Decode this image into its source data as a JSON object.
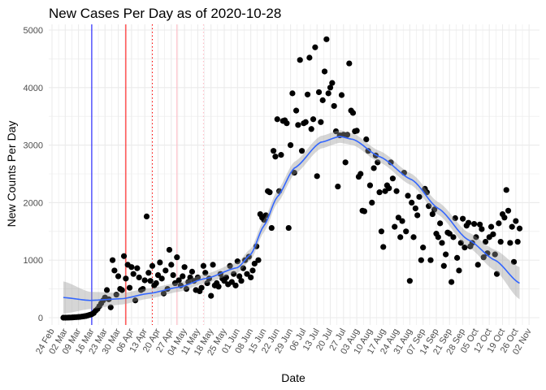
{
  "chart_data": {
    "type": "scatter",
    "title": "New Cases Per Day as of 2020-10-28",
    "xlabel": "Date",
    "ylabel": "New Counts Per Day",
    "ylim": [
      0,
      5000
    ],
    "yticks": [
      "0",
      "1000",
      "2000",
      "3000",
      "4000",
      "5000"
    ],
    "ytick_values": [
      0,
      1000,
      2000,
      3000,
      4000,
      5000
    ],
    "xlim_days_from_first_tick": [
      0,
      252
    ],
    "xticks": [
      "24 Feb",
      "02 Mar",
      "09 Mar",
      "16 Mar",
      "23 Mar",
      "30 Mar",
      "06 Apr",
      "13 Apr",
      "20 Apr",
      "27 Apr",
      "04 May",
      "11 May",
      "18 May",
      "25 May",
      "01 Jun",
      "08 Jun",
      "15 Jun",
      "22 Jun",
      "29 Jun",
      "06 Jul",
      "13 Jul",
      "20 Jul",
      "27 Jul",
      "03 Aug",
      "10 Aug",
      "17 Aug",
      "24 Aug",
      "31 Aug",
      "07 Sep",
      "14 Sep",
      "21 Sep",
      "28 Sep",
      "05 Oct",
      "12 Oct",
      "19 Oct",
      "26 Oct",
      "02 Nov"
    ],
    "grid": true,
    "first_point_day_offset": 6,
    "points_note_start": "2020-03-01",
    "values": [
      0,
      0,
      1,
      2,
      3,
      5,
      8,
      10,
      12,
      15,
      20,
      25,
      30,
      40,
      50,
      60,
      80,
      120,
      150,
      200,
      250,
      300,
      350,
      480,
      320,
      180,
      1000,
      820,
      400,
      720,
      500,
      480,
      1070,
      680,
      920,
      520,
      880,
      760,
      300,
      860,
      700,
      480,
      500,
      650,
      1760,
      780,
      640,
      900,
      560,
      600,
      740,
      960,
      680,
      420,
      820,
      500,
      1180,
      920,
      740,
      600,
      1050,
      650,
      560,
      720,
      880,
      500,
      620,
      700,
      800,
      640,
      480,
      700,
      460,
      520,
      900,
      780,
      600,
      680,
      380,
      920,
      560,
      600,
      540,
      760,
      680,
      640,
      700,
      580,
      900,
      620,
      760,
      560,
      980,
      720,
      640,
      860,
      1000,
      760,
      1060,
      700,
      820,
      940,
      1240,
      1000,
      1800,
      1740,
      1700,
      1780,
      2200,
      2180,
      1560,
      2900,
      2800,
      3450,
      2200,
      2830,
      3420,
      3430,
      3380,
      1560,
      3000,
      3900,
      2520,
      3600,
      3350,
      4480,
      2900,
      3380,
      3400,
      3880,
      4520,
      3280,
      3450,
      4700,
      2460,
      3920,
      3400,
      3780,
      4280,
      4840,
      3900,
      4000,
      4080,
      3680,
      3240,
      2280,
      3170,
      3870,
      3180,
      2700,
      3180,
      4420,
      3600,
      3560,
      3240,
      3250,
      2450,
      2500,
      1860,
      1850,
      3100,
      2900,
      2300,
      2000,
      2600,
      2820,
      2700,
      2180,
      1500,
      1230,
      2200,
      2300,
      2250,
      2700,
      2420,
      1580,
      2200,
      1740,
      1400,
      1680,
      2520,
      1500,
      2120,
      640,
      2000,
      1400,
      1900,
      1780,
      2100,
      1000,
      1220,
      2240,
      2180,
      1940,
      1000,
      1800,
      1880,
      1460,
      1400,
      1640,
      1300,
      900,
      1100,
      1480,
      1460,
      620,
      1400,
      1730,
      1040,
      820,
      1300,
      1720,
      1220,
      1600,
      1650,
      1240,
      1300,
      1630,
      1400,
      920,
      1620,
      1540,
      1050,
      1320,
      1120,
      1400,
      1580,
      1450,
      1100,
      760,
      1640,
      1320,
      1800,
      1740,
      2220,
      1860,
      1300,
      1580,
      970,
      1680,
      1320,
      1550
    ],
    "smooth": {
      "days": [
        6,
        20,
        37,
        51,
        67,
        81,
        98,
        105,
        112,
        119,
        128,
        142,
        152,
        159,
        173,
        190,
        204,
        220,
        234,
        247
      ],
      "fit": [
        350,
        300,
        330,
        420,
        530,
        680,
        870,
        1100,
        1600,
        2100,
        2600,
        3050,
        3150,
        3100,
        2800,
        2400,
        1900,
        1350,
        1000,
        600
      ],
      "se": [
        280,
        150,
        100,
        90,
        80,
        80,
        90,
        100,
        110,
        110,
        110,
        110,
        110,
        100,
        100,
        100,
        110,
        130,
        180,
        280
      ]
    },
    "vlines": [
      {
        "day": 21,
        "color": "#0000ff",
        "style": "solid"
      },
      {
        "day": 39,
        "color": "#ff0000",
        "style": "solid"
      },
      {
        "day": 53,
        "color": "#ff0000",
        "style": "dotted"
      },
      {
        "day": 66,
        "color": "#ffb6c1",
        "style": "solid"
      },
      {
        "day": 80,
        "color": "#ffb6c1",
        "style": "dotted"
      }
    ],
    "colors": {
      "points": "#000000",
      "smooth": "#3366ff",
      "ribbon": "#999999",
      "grid": "#ebebeb"
    }
  }
}
